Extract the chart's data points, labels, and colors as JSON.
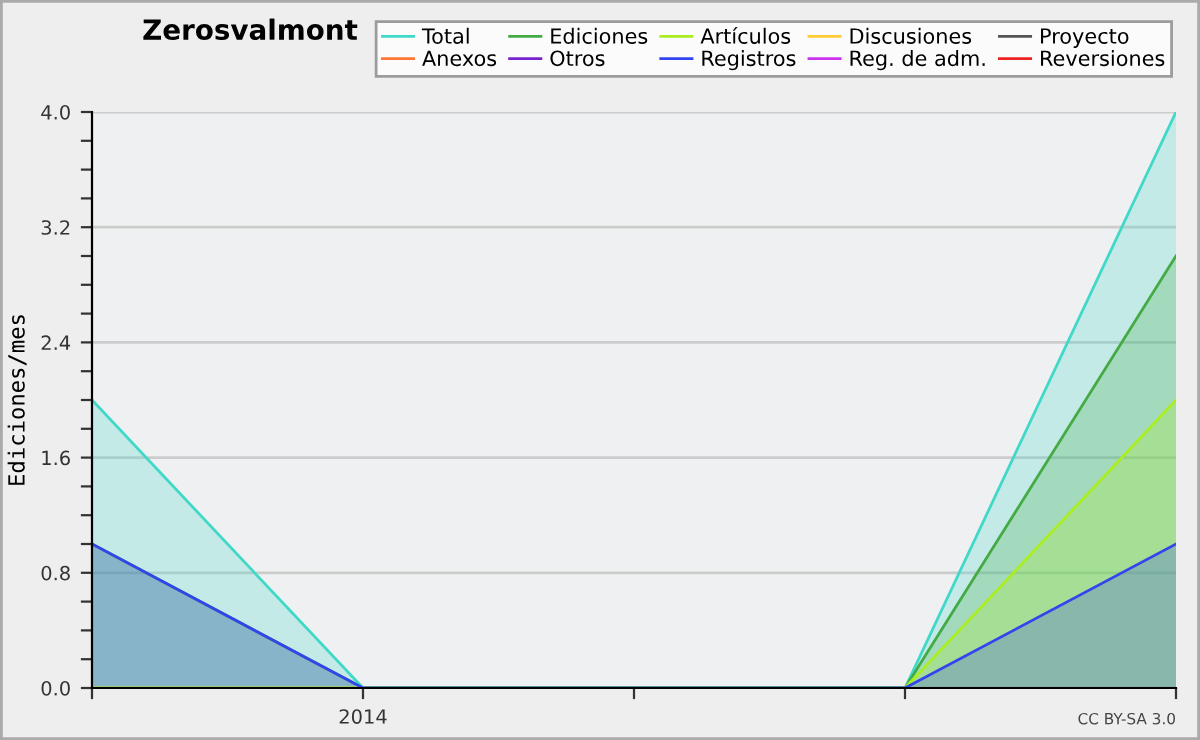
{
  "chart_data": {
    "type": "area",
    "title": "Zerosvalmont",
    "ylabel": "Ediciones/mes",
    "categories": [
      null,
      "2014",
      null,
      null,
      null
    ],
    "ylim": [
      0,
      4
    ],
    "yticks": [
      {
        "value": 0,
        "label": "0.0"
      },
      {
        "value": 0.2,
        "label": null
      },
      {
        "value": 0.4,
        "label": null
      },
      {
        "value": 0.6,
        "label": null
      },
      {
        "value": 0.8,
        "label": "0.8"
      },
      {
        "value": 1.0,
        "label": null
      },
      {
        "value": 1.2,
        "label": null
      },
      {
        "value": 1.4,
        "label": null
      },
      {
        "value": 1.6,
        "label": "1.6"
      },
      {
        "value": 1.8,
        "label": null
      },
      {
        "value": 2.0,
        "label": null
      },
      {
        "value": 2.2,
        "label": null
      },
      {
        "value": 2.4,
        "label": "2.4"
      },
      {
        "value": 2.6,
        "label": null
      },
      {
        "value": 2.8,
        "label": null
      },
      {
        "value": 3.0,
        "label": null
      },
      {
        "value": 3.2,
        "label": "3.2"
      },
      {
        "value": 3.4,
        "label": null
      },
      {
        "value": 3.6,
        "label": null
      },
      {
        "value": 3.8,
        "label": null
      },
      {
        "value": 4.0,
        "label": "4.0"
      }
    ],
    "grid": "y",
    "legend": "top right",
    "annotations": [
      "CC BY-SA 3.0"
    ],
    "series": [
      {
        "name": "Total",
        "color": "#40d8c8",
        "values": [
          2,
          0,
          0,
          0,
          4
        ]
      },
      {
        "name": "Ediciones",
        "color": "#44aa44",
        "values": [
          1,
          0,
          0,
          0,
          3
        ]
      },
      {
        "name": "Artículos",
        "color": "#aaee22",
        "values": [
          0,
          0,
          0,
          0,
          2
        ]
      },
      {
        "name": "Discusiones",
        "color": "#ffcc33",
        "values": [
          null,
          null,
          null,
          null,
          null
        ]
      },
      {
        "name": "Proyecto",
        "color": "#555555",
        "values": [
          null,
          null,
          null,
          null,
          null
        ]
      },
      {
        "name": "Anexos",
        "color": "#ff7733",
        "values": [
          null,
          null,
          null,
          null,
          null
        ]
      },
      {
        "name": "Otros",
        "color": "#7722cc",
        "values": [
          null,
          null,
          null,
          null,
          null
        ]
      },
      {
        "name": "Registros",
        "color": "#3344ee",
        "values": [
          1,
          0,
          0,
          0,
          1
        ]
      },
      {
        "name": "Reg. de adm.",
        "color": "#cc33ee",
        "values": [
          null,
          null,
          null,
          null,
          null
        ]
      },
      {
        "name": "Reversiones",
        "color": "#ee2222",
        "values": [
          null,
          null,
          null,
          null,
          null
        ]
      }
    ]
  }
}
